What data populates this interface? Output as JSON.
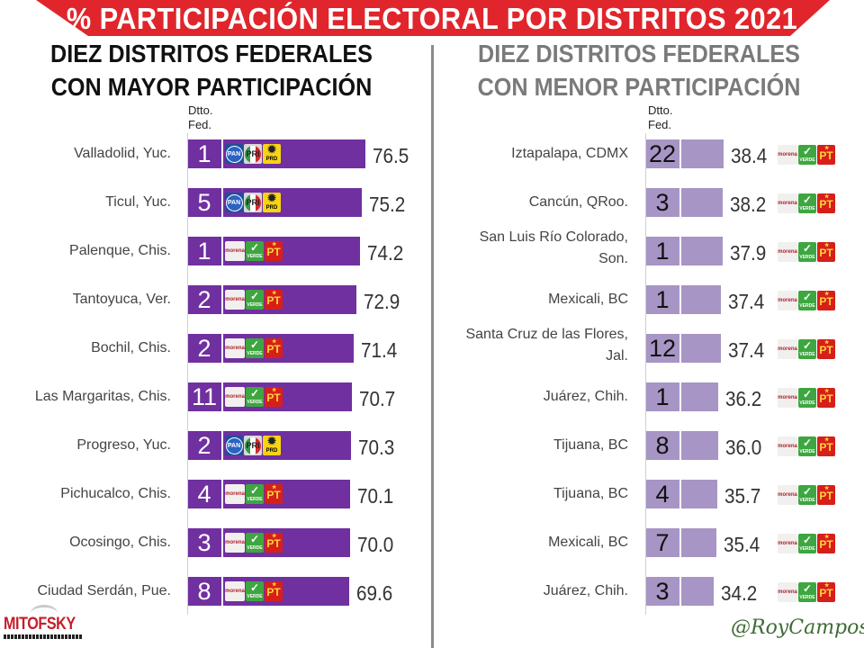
{
  "header": {
    "title": "% PARTICIPACIÓN ELECTORAL POR DISTRITOS 2021",
    "banner_color": "#E0262C"
  },
  "left_panel": {
    "title_line1": "DIEZ DISTRITOS FEDERALES",
    "title_line2": "CON MAYOR PARTICIPACIÓN",
    "column_header_line1": "Dtto.",
    "column_header_line2": "Fed.",
    "bar_color": "#7030A0"
  },
  "right_panel": {
    "title_line1": "DIEZ DISTRITOS FEDERALES",
    "title_line2": "CON MENOR PARTICIPACIÓN",
    "column_header_line1": "Dtto.",
    "column_header_line2": "Fed.",
    "bar_color": "#A795C5"
  },
  "coalitions": {
    "va_por_mexico": [
      "PAN",
      "PRI",
      "PRD"
    ],
    "juntos_hacemos_historia": [
      "morena",
      "VERDE",
      "PT"
    ]
  },
  "chart_data": [
    {
      "type": "bar",
      "orientation": "horizontal",
      "title": "DIEZ DISTRITOS FEDERALES CON MAYOR PARTICIPACIÓN",
      "ylabel": "Dtto. Fed.",
      "unit": "% participación",
      "categories": [
        "Valladolid, Yuc.",
        "Ticul, Yuc.",
        "Palenque, Chis.",
        "Tantoyuca, Ver.",
        "Bochil, Chis.",
        "Las Margaritas, Chis.",
        "Progreso, Yuc.",
        "Pichucalco, Chis.",
        "Ocosingo, Chis.",
        "Ciudad Serdán, Pue."
      ],
      "district": [
        "1",
        "5",
        "1",
        "2",
        "2",
        "11",
        "2",
        "4",
        "3",
        "8"
      ],
      "values": [
        76.5,
        75.2,
        74.2,
        72.9,
        71.4,
        70.7,
        70.3,
        70.1,
        70.0,
        69.6
      ],
      "value_labels": [
        "76.5",
        "75.2",
        "74.2",
        "72.9",
        "71.4",
        "70.7",
        "70.3",
        "70.1",
        "70.0",
        "69.6"
      ],
      "winner": [
        "va_por_mexico",
        "va_por_mexico",
        "juntos_hacemos_historia",
        "juntos_hacemos_historia",
        "juntos_hacemos_historia",
        "juntos_hacemos_historia",
        "va_por_mexico",
        "juntos_hacemos_historia",
        "juntos_hacemos_historia",
        "juntos_hacemos_historia"
      ]
    },
    {
      "type": "bar",
      "orientation": "horizontal",
      "title": "DIEZ DISTRITOS FEDERALES CON MENOR PARTICIPACIÓN",
      "ylabel": "Dtto. Fed.",
      "unit": "% participación",
      "categories": [
        "Iztapalapa, CDMX",
        "Cancún, QRoo.",
        "San Luis Río Colorado, Son.",
        "Mexicali, BC",
        "Santa Cruz de las Flores, Jal.",
        "Juárez, Chih.",
        "Tijuana, BC",
        "Tijuana, BC",
        "Mexicali, BC",
        "Juárez, Chih."
      ],
      "category_lines": [
        [
          "Iztapalapa, CDMX"
        ],
        [
          "Cancún, QRoo."
        ],
        [
          "San Luis Río Colorado,",
          "Son."
        ],
        [
          "Mexicali, BC"
        ],
        [
          "Santa Cruz de las Flores,",
          "Jal."
        ],
        [
          "Juárez, Chih."
        ],
        [
          "Tijuana, BC"
        ],
        [
          "Tijuana, BC"
        ],
        [
          "Mexicali, BC"
        ],
        [
          "Juárez, Chih."
        ]
      ],
      "district": [
        "22",
        "3",
        "1",
        "1",
        "12",
        "1",
        "8",
        "4",
        "7",
        "3"
      ],
      "values": [
        38.4,
        38.2,
        37.9,
        37.4,
        37.4,
        36.2,
        36.0,
        35.7,
        35.4,
        34.2
      ],
      "value_labels": [
        "38.4",
        "38.2",
        "37.9",
        "37.4",
        "37.4",
        "36.2",
        "36.0",
        "35.7",
        "35.4",
        "34.2"
      ],
      "winner": [
        "juntos_hacemos_historia",
        "juntos_hacemos_historia",
        "juntos_hacemos_historia",
        "juntos_hacemos_historia",
        "juntos_hacemos_historia",
        "juntos_hacemos_historia",
        "juntos_hacemos_historia",
        "juntos_hacemos_historia",
        "juntos_hacemos_historia",
        "juntos_hacemos_historia"
      ]
    }
  ],
  "footer": {
    "logo_text": "MITOFSKY",
    "signature": "@RoyCampos"
  }
}
